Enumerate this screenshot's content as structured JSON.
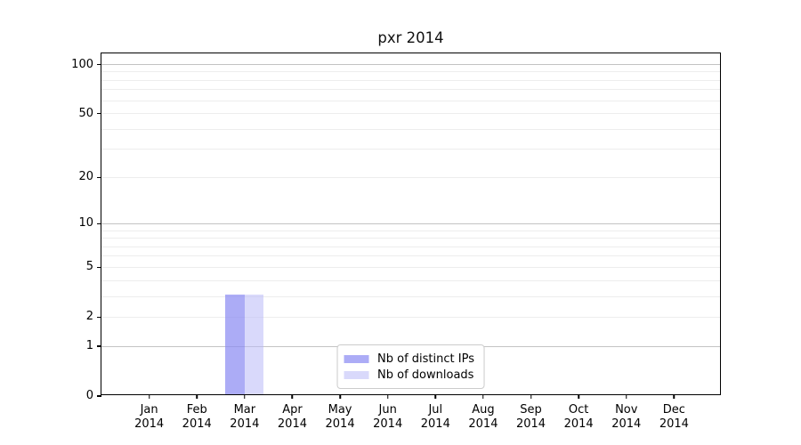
{
  "chart_data": {
    "type": "bar",
    "title": "pxr 2014",
    "categories": [
      "Jan",
      "Feb",
      "Mar",
      "Apr",
      "May",
      "Jun",
      "Jul",
      "Aug",
      "Sep",
      "Oct",
      "Nov",
      "Dec"
    ],
    "year_label": "2014",
    "series": [
      {
        "name": "Nb of distinct IPs",
        "color": "rgba(140,140,242,0.72)",
        "values": [
          0,
          0,
          3,
          0,
          0,
          0,
          0,
          0,
          0,
          0,
          0,
          0
        ]
      },
      {
        "name": "Nb of downloads",
        "color": "rgba(185,185,248,0.55)",
        "values": [
          0,
          0,
          3,
          0,
          0,
          0,
          0,
          0,
          0,
          0,
          0,
          0
        ]
      }
    ],
    "xlabel": "",
    "ylabel": "",
    "y_scale": "log1p",
    "y_ticks": [
      0,
      1,
      2,
      5,
      10,
      20,
      50,
      100
    ],
    "ylim": [
      0,
      117
    ],
    "grid": {
      "major": [
        1,
        10,
        100
      ],
      "minor": [
        2,
        3,
        4,
        5,
        6,
        7,
        8,
        9,
        20,
        30,
        40,
        50,
        60,
        70,
        80,
        90
      ]
    },
    "legend_position": "lower center"
  },
  "colors": {
    "major_grid": "#c3c3c3",
    "minor_grid": "#ededed",
    "axis": "#000000"
  }
}
